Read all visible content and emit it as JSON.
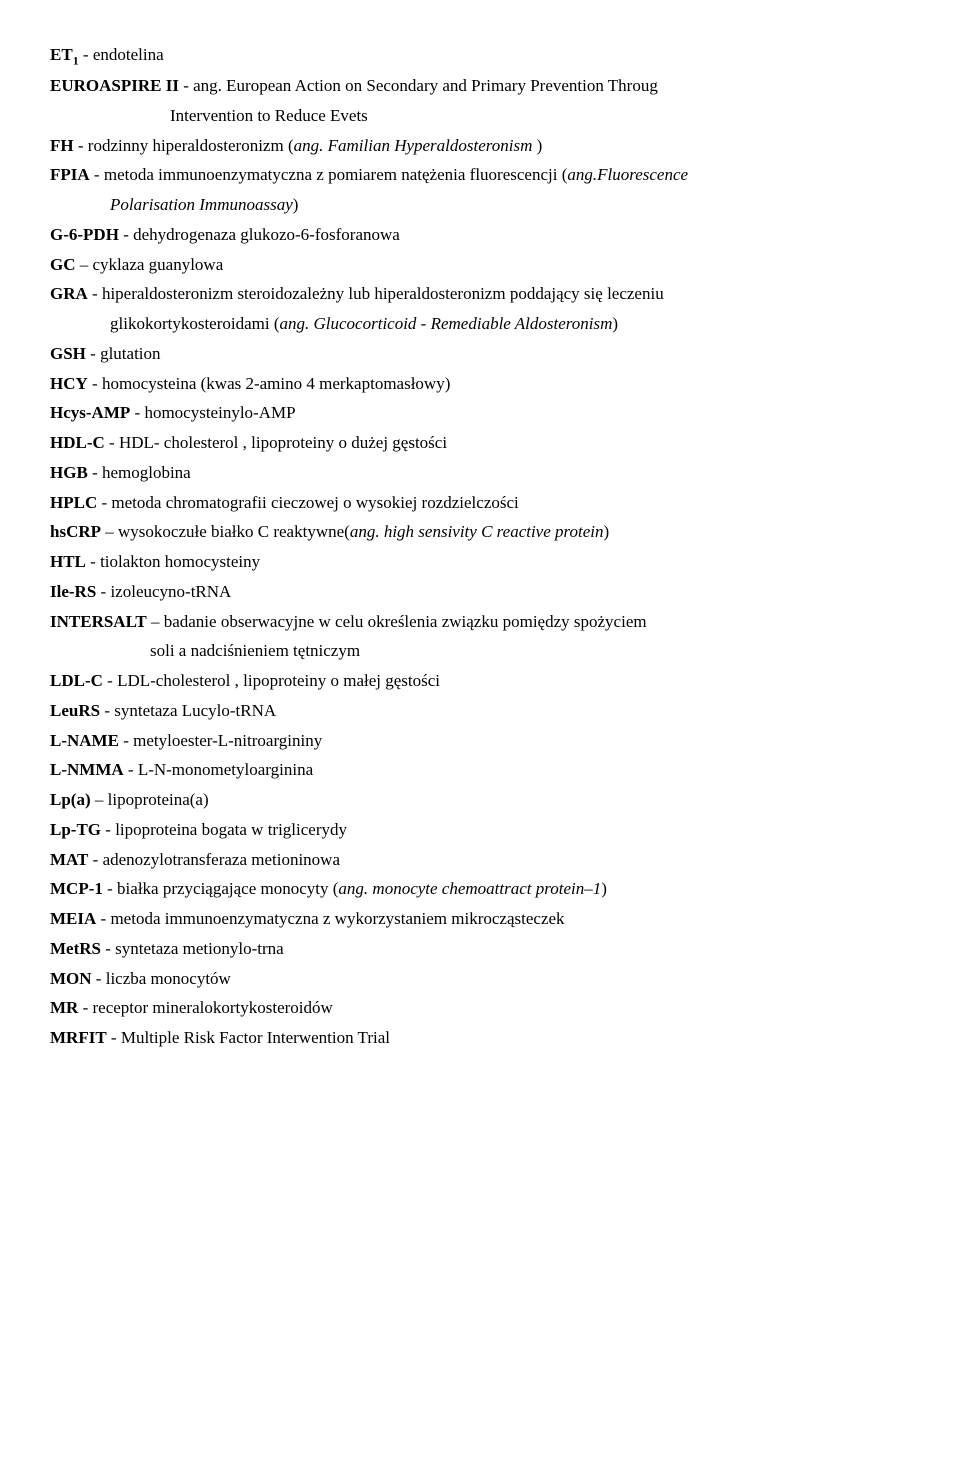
{
  "entries": [
    {
      "term": "ET",
      "sub": "1",
      "sep": "  - ",
      "desc": "endotelina"
    },
    {
      "term": "EUROASPIRE II",
      "sep": " - ",
      "desc": "ang. European Action on Secondary and Primary Prevention Throug"
    },
    {
      "indent": "indent1",
      "plain": "Intervention to Reduce Evets"
    },
    {
      "term": "FH",
      "sep": "  - ",
      "desc": "rodzinny hiperaldosteronizm (",
      "ital": "ang. Familian Hyperaldosteronism ",
      "tail": ")"
    },
    {
      "term": "FPIA",
      "sep": "  - ",
      "desc": "metoda immunoenzymatyczna z pomiarem natężenia fluorescencji (",
      "ital": "ang.Fluorescence"
    },
    {
      "indent": "indent2",
      "ital": "Polarisation Immunoassay",
      "tail": ")"
    },
    {
      "term": "G-6-PDH",
      "sep": "  - ",
      "desc": "dehydrogenaza glukozo-6-fosforanowa"
    },
    {
      "term": "GC",
      "sep": " – ",
      "desc": "cyklaza guanylowa"
    },
    {
      "term": "GRA",
      "sep": "  - ",
      "desc": "hiperaldosteronizm steroidozależny lub hiperaldosteronizm poddający się leczeniu"
    },
    {
      "indent": "indent2",
      "plain": "glikokortykosteroidami (",
      "ital": "ang. Glucocorticoid - Remediable Aldosteronism",
      "tail": ")"
    },
    {
      "term": "GSH",
      "sep": "  - ",
      "desc": "glutation"
    },
    {
      "term": "HCY",
      "sep": "  - ",
      "desc": "homocysteina (kwas 2-amino 4 merkaptomasłowy)"
    },
    {
      "term": "Hcys-AMP",
      "sep": "  - ",
      "desc": "homocysteinylo-AMP"
    },
    {
      "term": "HDL-C",
      "sep": "   - ",
      "desc": "HDL- cholesterol , lipoproteiny o dużej gęstości"
    },
    {
      "term": "HGB",
      "sep": "  - ",
      "desc": "hemoglobina"
    },
    {
      "term": "HPLC",
      "sep": "  - ",
      "desc": "metoda chromatografii cieczowej o wysokiej rozdzielczości"
    },
    {
      "term": "hsCRP",
      "sep": " – ",
      "desc": "wysokoczułe białko C reaktywne(",
      "ital": "ang. high sensivity C reactive protein",
      "tail": ")"
    },
    {
      "term": "HTL",
      "sep": "  - ",
      "desc": "tiolakton homocysteiny"
    },
    {
      "term": "Ile-RS",
      "sep": "  - ",
      "desc": "izoleucyno-tRNA"
    },
    {
      "term": "INTERSALT",
      "sep": " – ",
      "desc": "badanie obserwacyjne w celu określenia związku pomiędzy spożyciem"
    },
    {
      "indent": "indent3",
      "plain": "soli a nadciśnieniem tętniczym"
    },
    {
      "term": "LDL-C",
      "sep": "   - ",
      "desc": "LDL-cholesterol , lipoproteiny o małej gęstości"
    },
    {
      "term": "LeuRS",
      "sep": "  - ",
      "desc": "syntetaza Lucylo-tRNA"
    },
    {
      "term": "L-NAME",
      "sep": " - ",
      "desc": "metyloester-L-nitroargininy"
    },
    {
      "term": "L-NMMA",
      "sep": " - ",
      "desc": "L-N-monometyloarginina"
    },
    {
      "term": "Lp(a)",
      "sep": " – ",
      "desc": "lipoproteina(a)"
    },
    {
      "term": "Lp-TG",
      "sep": "  - ",
      "desc": "lipoproteina bogata w triglicerydy"
    },
    {
      "term": "MAT",
      "sep": "  - ",
      "desc": "adenozylotransferaza metioninowa"
    },
    {
      "term": "MCP-1",
      "sep": "  - ",
      "desc": "białka przyciągające monocyty (",
      "ital": "ang. monocyte chemoattract protein–1",
      "tail": ")"
    },
    {
      "term": "MEIA",
      "sep": "  - ",
      "desc": "metoda immunoenzymatyczna z wykorzystaniem mikrocząsteczek"
    },
    {
      "term": "MetRS",
      "sep": "  - ",
      "desc": "syntetaza metionylo-trna"
    },
    {
      "term": "MON",
      "sep": "  - ",
      "desc": "liczba monocytów"
    },
    {
      "term": "MR",
      "sep": "  - ",
      "desc": "receptor mineralokortykosteroidów"
    },
    {
      "term": "MRFIT",
      "sep": " - ",
      "desc": "Multiple Risk Factor Interwention Trial"
    }
  ]
}
